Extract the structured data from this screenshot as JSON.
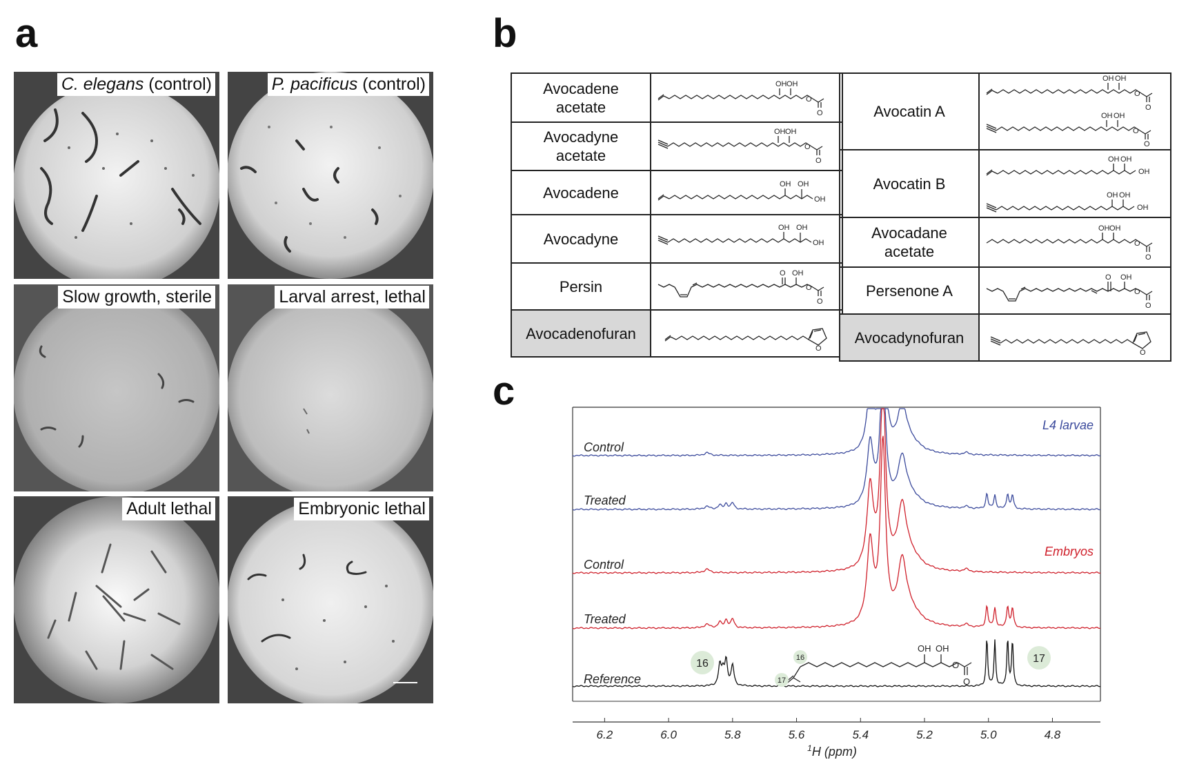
{
  "panel_a": {
    "letter": "a",
    "wells": [
      {
        "italic": "C. elegans",
        "rest": " (control)"
      },
      {
        "italic": "P. pacificus",
        "rest": " (control)"
      },
      {
        "italic": "",
        "rest": "Slow growth, sterile"
      },
      {
        "italic": "",
        "rest": "Larval arrest, lethal"
      },
      {
        "italic": "",
        "rest": "Adult lethal"
      },
      {
        "italic": "",
        "rest": "Embryonic lethal"
      }
    ]
  },
  "panel_b": {
    "letter": "b",
    "left": [
      {
        "name": "Avocadene acetate",
        "label_lines": [
          "Avocadene",
          "acetate"
        ]
      },
      {
        "name": "Avocadyne acetate",
        "label_lines": [
          "Avocadyne",
          "acetate"
        ]
      },
      {
        "name": "Avocadene",
        "label_lines": [
          "Avocadene"
        ]
      },
      {
        "name": "Avocadyne",
        "label_lines": [
          "Avocadyne"
        ]
      },
      {
        "name": "Persin",
        "label_lines": [
          "Persin"
        ]
      },
      {
        "name": "Avocadenofuran",
        "label_lines": [
          "Avocadenofuran"
        ]
      }
    ],
    "right": [
      {
        "name": "Avocatin A",
        "label_lines": [
          "Avocatin A"
        ]
      },
      {
        "name": "Avocatin B",
        "label_lines": [
          "Avocatin B"
        ]
      },
      {
        "name": "Avocadane acetate",
        "label_lines": [
          "Avocadane",
          "acetate"
        ]
      },
      {
        "name": "Persenone A",
        "label_lines": [
          "Persenone A"
        ]
      },
      {
        "name": "Avocadynofuran",
        "label_lines": [
          "Avocadynofuran"
        ]
      }
    ],
    "atom_labels": {
      "oh": "OH",
      "o": "O"
    }
  },
  "panel_c": {
    "letter": "c",
    "groups": [
      {
        "name": "L4 larvae",
        "color": "#3b4a9c"
      },
      {
        "name": "Embryos",
        "color": "#cf1f2a"
      }
    ],
    "traces": [
      {
        "label": "Control",
        "group": "L4 larvae"
      },
      {
        "label": "Treated",
        "group": "L4 larvae"
      },
      {
        "label": "Control",
        "group": "Embryos"
      },
      {
        "label": "Treated",
        "group": "Embryos"
      },
      {
        "label": "Reference",
        "group": ""
      }
    ],
    "peak_labels": [
      "16",
      "17"
    ],
    "structure_labels": {
      "c16": "16",
      "c17": "17",
      "oh": "OH",
      "o": "O"
    },
    "x_ticks": [
      6.2,
      6.0,
      5.8,
      5.6,
      5.4,
      5.2,
      5.0,
      4.8
    ],
    "x_tick_labels": [
      "6.2",
      "6.0",
      "5.8",
      "5.6",
      "5.4",
      "5.2",
      "5.0",
      "4.8"
    ],
    "x_axis_range_ppm": [
      6.3,
      4.65
    ],
    "x_axis_label_sup": "1",
    "x_axis_label": "H (ppm)",
    "reference_color": "#111111"
  }
}
